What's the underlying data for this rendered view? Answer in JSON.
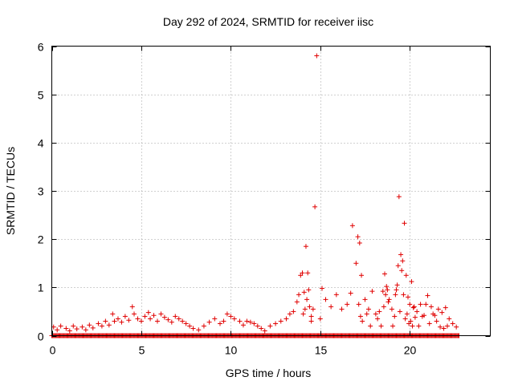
{
  "chart_data": {
    "type": "scatter",
    "title": "Day 292 of 2024, SRMTID for receiver iisc",
    "xlabel": "GPS time / hours",
    "ylabel": "SRMTID / TECUs",
    "xlim": [
      0,
      24.5
    ],
    "ylim": [
      0,
      6
    ],
    "xticks": [
      0,
      5,
      10,
      15,
      20
    ],
    "yticks": [
      0,
      1,
      2,
      3,
      4,
      5,
      6
    ],
    "grid": true,
    "marker": "+",
    "marker_color": "#e00000",
    "baseline": {
      "y": 0.0,
      "x_start": 0.0,
      "x_end": 22.8
    },
    "x": [
      0.1,
      0.3,
      0.5,
      0.8,
      1.0,
      1.2,
      1.4,
      1.7,
      1.9,
      2.1,
      2.3,
      2.6,
      2.8,
      3.0,
      3.2,
      3.4,
      3.5,
      3.7,
      3.9,
      4.1,
      4.3,
      4.5,
      4.6,
      4.8,
      5.0,
      5.2,
      5.4,
      5.5,
      5.7,
      5.9,
      6.1,
      6.3,
      6.5,
      6.7,
      6.9,
      7.1,
      7.3,
      7.5,
      7.7,
      7.9,
      8.2,
      8.5,
      8.8,
      9.1,
      9.4,
      9.6,
      9.8,
      10.0,
      10.2,
      10.5,
      10.7,
      10.9,
      11.1,
      11.3,
      11.5,
      11.7,
      11.9,
      12.2,
      12.5,
      12.8,
      13.1,
      13.3,
      13.5,
      13.7,
      13.8,
      13.9,
      14.0,
      14.1,
      14.2,
      14.3,
      14.4,
      14.5,
      14.7,
      14.8,
      15.0,
      15.1,
      15.3,
      15.6,
      15.9,
      16.2,
      16.5,
      16.7,
      16.8,
      17.0,
      17.1,
      17.2,
      17.3,
      17.5,
      17.7,
      17.9,
      18.1,
      18.3,
      18.5,
      18.6,
      18.7,
      18.8,
      19.0,
      19.2,
      19.3,
      19.4,
      19.5,
      19.6,
      19.7,
      19.8,
      19.9,
      20.0,
      20.1,
      20.2,
      20.4,
      20.6,
      20.8,
      21.0,
      21.2,
      21.4,
      21.6,
      21.8,
      22.0,
      22.2,
      22.4,
      22.6
    ],
    "y": [
      0.18,
      0.12,
      0.2,
      0.15,
      0.1,
      0.2,
      0.14,
      0.18,
      0.12,
      0.22,
      0.16,
      0.25,
      0.2,
      0.3,
      0.22,
      0.45,
      0.3,
      0.35,
      0.28,
      0.4,
      0.32,
      0.6,
      0.45,
      0.35,
      0.3,
      0.4,
      0.48,
      0.35,
      0.42,
      0.3,
      0.45,
      0.38,
      0.33,
      0.28,
      0.4,
      0.35,
      0.3,
      0.25,
      0.2,
      0.15,
      0.12,
      0.2,
      0.28,
      0.35,
      0.25,
      0.3,
      0.45,
      0.4,
      0.35,
      0.3,
      0.22,
      0.3,
      0.28,
      0.25,
      0.2,
      0.15,
      0.1,
      0.2,
      0.25,
      0.3,
      0.35,
      0.45,
      0.5,
      0.7,
      0.85,
      1.25,
      1.3,
      0.9,
      1.85,
      1.3,
      0.6,
      0.4,
      2.67,
      5.8,
      0.35,
      0.98,
      0.75,
      0.6,
      0.85,
      0.55,
      0.65,
      0.88,
      2.28,
      1.5,
      2.05,
      1.92,
      1.25,
      0.75,
      0.55,
      0.92,
      0.45,
      0.5,
      0.92,
      1.28,
      1.02,
      0.7,
      0.55,
      0.85,
      1.05,
      2.88,
      1.68,
      1.55,
      2.33,
      1.25,
      0.8,
      0.65,
      1.12,
      0.58,
      0.5,
      0.65,
      0.42,
      0.83,
      0.6,
      0.42,
      0.55,
      0.48,
      0.58,
      0.35,
      0.25,
      0.18
    ],
    "extra_x": [
      14.05,
      14.15,
      14.25,
      14.35,
      14.5,
      14.6,
      17.15,
      17.25,
      17.35,
      17.6,
      17.8,
      18.2,
      18.4,
      18.55,
      18.65,
      18.75,
      18.85,
      19.05,
      19.15,
      19.25,
      19.35,
      19.45,
      19.55,
      19.65,
      19.75,
      19.85,
      19.95,
      20.05,
      20.15,
      20.25,
      20.3,
      20.5,
      20.7,
      20.9,
      21.1,
      21.3,
      21.5,
      21.7,
      21.9,
      22.1
    ],
    "extra_y": [
      0.45,
      0.55,
      0.75,
      0.95,
      0.3,
      0.55,
      0.65,
      0.4,
      0.3,
      0.45,
      0.2,
      0.35,
      0.2,
      0.6,
      0.85,
      0.95,
      0.75,
      0.2,
      0.4,
      0.95,
      1.45,
      0.5,
      1.35,
      0.85,
      0.35,
      0.45,
      0.25,
      0.3,
      0.2,
      0.6,
      0.38,
      0.2,
      0.4,
      0.65,
      0.25,
      0.45,
      0.3,
      0.18,
      0.15,
      0.2
    ]
  }
}
